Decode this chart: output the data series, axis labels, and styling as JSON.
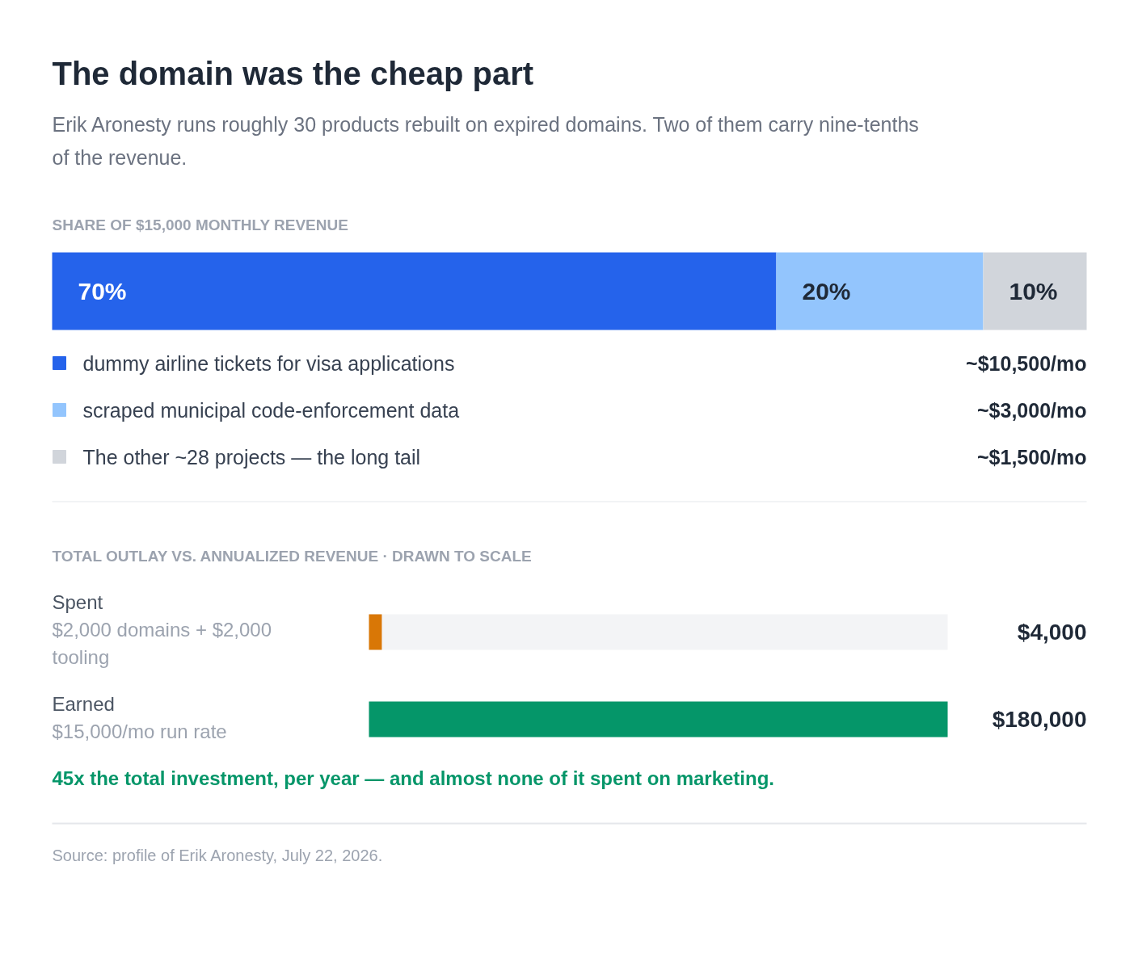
{
  "chart_data": [
    {
      "type": "bar",
      "title": "The domain was the cheap part",
      "subtitle": "Erik Aronesty runs roughly 30 products rebuilt on expired domains. Two of them carry nine-tenths of the revenue.",
      "xlabel": "SHARE OF $15,000 MONTHLY REVENUE",
      "categories": [
        null
      ],
      "orientation": "horizontal",
      "stacked": true,
      "xlim": [
        0,
        100
      ],
      "legend": "bottom",
      "series": [
        {
          "name": "dummy airline tickets for visa applications",
          "color": "#2563eb",
          "values": [
            70
          ],
          "value_labels": [
            "70%"
          ]
        },
        {
          "name": "scraped municipal code-enforcement data",
          "color": "#93c5fd",
          "values": [
            20
          ],
          "value_labels": [
            "20%"
          ]
        },
        {
          "name": "The other ~28 projects — the long tail",
          "color": "#d1d5db",
          "values": [
            10
          ],
          "value_labels": [
            "10%"
          ]
        }
      ],
      "annotations": [
        "~$10,500/mo",
        "~$3,000/mo",
        "~$1,500/mo"
      ]
    },
    {
      "type": "bar",
      "title": "TOTAL OUTLAY VS. ANNUALIZED REVENUE  ·  DRAWN TO SCALE",
      "categories": [
        "Spent",
        "Earned"
      ],
      "orientation": "horizontal",
      "values": [
        4000,
        180000
      ],
      "colors": [
        "#d97706",
        "#059669"
      ],
      "xlim": [
        0,
        180000
      ],
      "value_labels": [
        "$4,000",
        "$180,000"
      ],
      "annotations": [
        "$2,000 domains + $2,000 tooling",
        "$15,000/mo run rate",
        "45x the total investment, per year — and almost none of it spent on marketing.",
        "Source: profile of Erik Aronesty, July 22, 2026."
      ]
    }
  ]
}
